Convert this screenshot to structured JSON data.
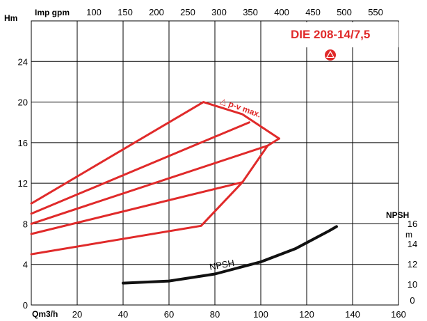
{
  "chart_data": {
    "type": "line",
    "title": "DIE 208-14/7,5",
    "colors": {
      "curve": "#e02a2a",
      "npsh": "#111111",
      "grid": "#000000",
      "title": "#e02a2a"
    },
    "icon": "pump-triangle-icon",
    "x_axis": {
      "label": "Qm3/h",
      "range": [
        0,
        160
      ],
      "ticks": [
        20,
        40,
        60,
        80,
        100,
        120,
        140,
        160
      ]
    },
    "top_axis": {
      "label": "Imp gpm",
      "ticks": [
        100,
        150,
        200,
        250,
        300,
        350,
        400,
        450,
        500,
        550
      ]
    },
    "y_axis": {
      "label": "Hm",
      "range": [
        0,
        28
      ],
      "ticks": [
        0,
        4,
        8,
        12,
        16,
        20,
        24
      ]
    },
    "right_axis": {
      "label": "NPSH",
      "unit": "m",
      "ticks": [
        0,
        10,
        12,
        14,
        16
      ]
    },
    "grid": true,
    "annotation": "△ p-v max.",
    "npsh_label": "NPSH",
    "series": [
      {
        "values": [
          [
            0,
            10.0
          ],
          [
            75,
            20.0
          ],
          [
            92,
            18.8
          ],
          [
            108,
            16.4
          ]
        ]
      },
      {
        "values": [
          [
            0,
            9.0
          ],
          [
            95,
            18.0
          ]
        ]
      },
      {
        "values": [
          [
            0,
            8.0
          ],
          [
            103,
            15.7
          ]
        ]
      },
      {
        "values": [
          [
            0,
            7.0
          ],
          [
            92,
            12.1
          ]
        ]
      },
      {
        "values": [
          [
            0,
            5.0
          ],
          [
            74,
            7.8
          ],
          [
            92,
            12.1
          ],
          [
            103,
            15.7
          ],
          [
            108,
            16.4
          ]
        ]
      }
    ],
    "npsh_curve": [
      [
        40,
        10.1
      ],
      [
        60,
        10.3
      ],
      [
        80,
        11.0
      ],
      [
        100,
        12.2
      ],
      [
        115,
        13.5
      ],
      [
        130,
        15.3
      ],
      [
        133,
        15.7
      ]
    ]
  }
}
